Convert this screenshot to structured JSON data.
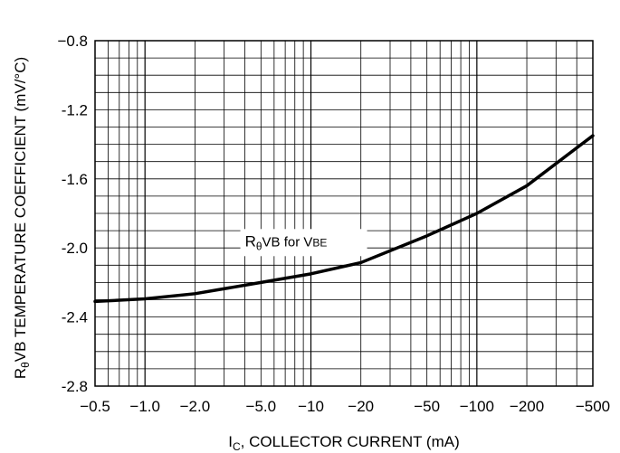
{
  "chart_data": {
    "type": "line",
    "xscale": "log",
    "xlim": [
      -0.5,
      -500
    ],
    "ylim": [
      -2.8,
      -0.8
    ],
    "grid": true,
    "x_ticks": [
      {
        "value": -0.5,
        "label": "−0.5"
      },
      {
        "value": -1.0,
        "label": "−1.0"
      },
      {
        "value": -2.0,
        "label": "−2.0"
      },
      {
        "value": -5.0,
        "label": "−5.0"
      },
      {
        "value": -10,
        "label": "−10"
      },
      {
        "value": -20,
        "label": "−20"
      },
      {
        "value": -50,
        "label": "−50"
      },
      {
        "value": -100,
        "label": "−100"
      },
      {
        "value": -200,
        "label": "−200"
      },
      {
        "value": -500,
        "label": "−500"
      }
    ],
    "y_ticks": [
      {
        "value": -0.8,
        "label": "−0.8"
      },
      {
        "value": -1.2,
        "label": "-1.2"
      },
      {
        "value": -1.6,
        "label": "-1.6"
      },
      {
        "value": -2.0,
        "label": "-2.0"
      },
      {
        "value": -2.4,
        "label": "-2.4"
      },
      {
        "value": -2.8,
        "label": "-2.8"
      }
    ],
    "xlabel": {
      "main": "I",
      "sub": "C",
      "rest": ", COLLECTOR CURRENT (mA)"
    },
    "ylabel": {
      "main": "R",
      "sub": "θ",
      "rest": "VB TEMPERATURE COEFFICIENT (mV/°C)"
    },
    "series": [
      {
        "name": "RθVB for VBE",
        "x": [
          -0.5,
          -1,
          -2,
          -5,
          -10,
          -20,
          -50,
          -100,
          -200,
          -500
        ],
        "y": [
          -2.31,
          -2.295,
          -2.265,
          -2.2,
          -2.15,
          -2.085,
          -1.93,
          -1.8,
          -1.64,
          -1.35
        ]
      }
    ],
    "annotation": {
      "label_main": "R",
      "label_sub": "θ",
      "label_rest": "VB for V",
      "label_tail": "BE",
      "x": -4,
      "y": -1.99
    }
  }
}
